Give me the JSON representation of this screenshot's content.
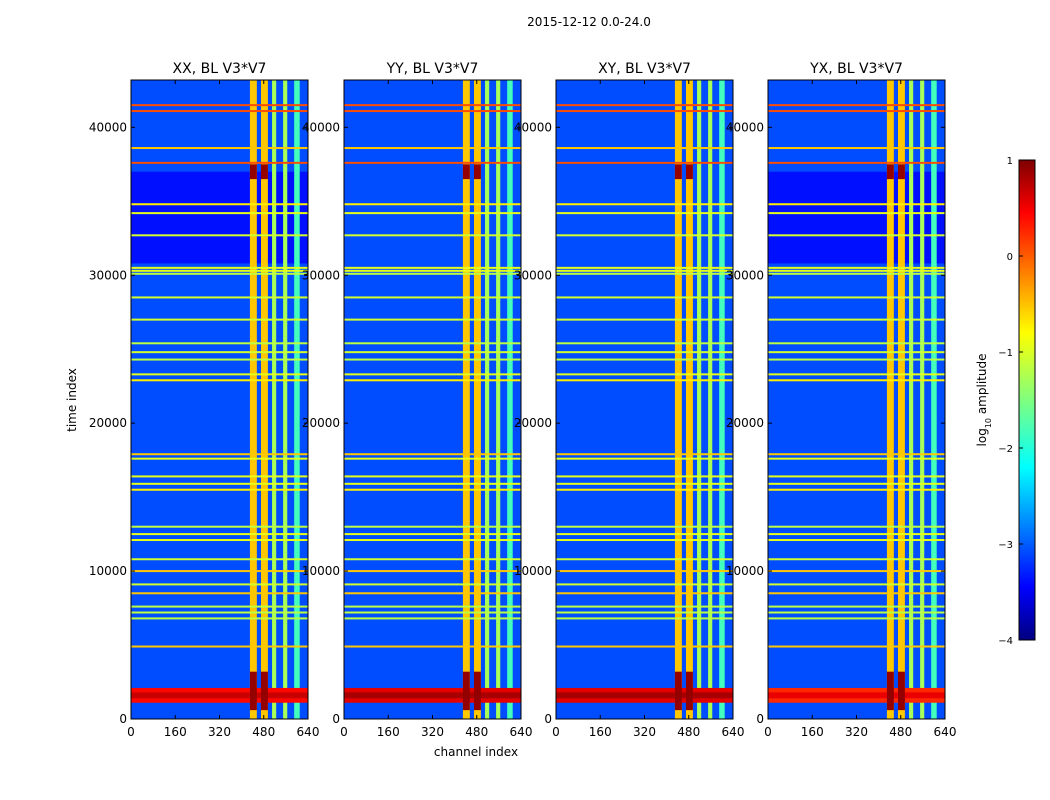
{
  "figure": {
    "suptitle": "2015-12-12 0.0-24.0",
    "xlabel": "channel index",
    "ylabel": "time index"
  },
  "colorbar": {
    "label_prefix": "log",
    "label_sub": "10",
    "label_suffix": " amplitude",
    "ticks": [
      "1",
      "0",
      "−1",
      "−2",
      "−3",
      "−4"
    ],
    "tick_values": [
      1,
      0,
      -1,
      -2,
      -3,
      -4
    ],
    "range": [
      -4,
      1
    ],
    "colormap": "jet"
  },
  "chart_data": {
    "type": "heatmap",
    "x_range": [
      0,
      640
    ],
    "y_range": [
      0,
      43200
    ],
    "x_ticks": [
      0,
      160,
      320,
      480,
      640
    ],
    "y_ticks": [
      0,
      10000,
      20000,
      30000,
      40000
    ],
    "x_tick_labels": [
      "0",
      "160",
      "320",
      "480",
      "640"
    ],
    "y_tick_labels": [
      "0",
      "10000",
      "20000",
      "30000",
      "40000"
    ],
    "value_label": "log10 amplitude",
    "background_level": -3.0,
    "panels": [
      {
        "title": "XX, BL V3*V7",
        "polarization": "XX",
        "dark_after_ev": true,
        "ev_strength": 0.8
      },
      {
        "title": "YY, BL V3*V7",
        "polarization": "YY",
        "dark_after_ev": false,
        "ev_strength": 1.0
      },
      {
        "title": "XY, BL V3*V7",
        "polarization": "XY",
        "dark_after_ev": false,
        "ev_strength": 1.0
      },
      {
        "title": "YX, BL V3*V7",
        "polarization": "YX",
        "dark_after_ev": true,
        "ev_strength": 0.6
      }
    ],
    "bright_channel_bands": [
      {
        "start": 430,
        "end": 455,
        "level": -0.6
      },
      {
        "start": 470,
        "end": 495,
        "level": -0.6
      },
      {
        "start": 510,
        "end": 525,
        "level": -1.3
      },
      {
        "start": 550,
        "end": 565,
        "level": -1.3
      },
      {
        "start": 590,
        "end": 610,
        "level": -1.8
      }
    ],
    "rfi_rows": [
      {
        "t": 41500,
        "level": 0.0
      },
      {
        "t": 41100,
        "level": 0.0
      },
      {
        "t": 38600,
        "level": -0.6
      },
      {
        "t": 37600,
        "level": 0.0
      },
      {
        "t": 34800,
        "level": -0.8
      },
      {
        "t": 34200,
        "level": -1.0
      },
      {
        "t": 32700,
        "level": -1.1
      },
      {
        "t": 30500,
        "level": -1.0
      },
      {
        "t": 30300,
        "level": -1.0
      },
      {
        "t": 30100,
        "level": -1.2
      },
      {
        "t": 28500,
        "level": -1.1
      },
      {
        "t": 27000,
        "level": -1.1
      },
      {
        "t": 25400,
        "level": -1.2
      },
      {
        "t": 24800,
        "level": -1.1
      },
      {
        "t": 24300,
        "level": -1.2
      },
      {
        "t": 23300,
        "level": -1.0
      },
      {
        "t": 22900,
        "level": -0.8
      },
      {
        "t": 17900,
        "level": -0.6
      },
      {
        "t": 17600,
        "level": -1.0
      },
      {
        "t": 16400,
        "level": -1.0
      },
      {
        "t": 15900,
        "level": -1.0
      },
      {
        "t": 15500,
        "level": -0.8
      },
      {
        "t": 13000,
        "level": -1.2
      },
      {
        "t": 12500,
        "level": -1.0
      },
      {
        "t": 12100,
        "level": -1.0
      },
      {
        "t": 10800,
        "level": -1.1
      },
      {
        "t": 10000,
        "level": -0.6
      },
      {
        "t": 9100,
        "level": -1.1
      },
      {
        "t": 8500,
        "level": -0.6
      },
      {
        "t": 7600,
        "level": -1.2
      },
      {
        "t": 7200,
        "level": -1.2
      },
      {
        "t": 6800,
        "level": -1.2
      },
      {
        "t": 4900,
        "level": -0.6
      }
    ],
    "strong_event": {
      "t_center": 1600,
      "t_halfwidth": 500,
      "level": 0.8
    },
    "band_event": {
      "t_start": 36500,
      "t_end": 37500,
      "level": 0.9
    }
  }
}
